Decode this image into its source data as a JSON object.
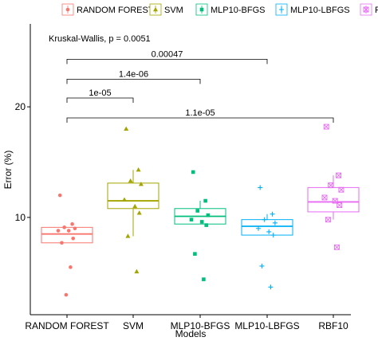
{
  "chart_data": {
    "type": "boxplot",
    "title": "",
    "xlabel": "Models",
    "ylabel": "Error (%)",
    "ylim": [
      1.2,
      27.5
    ],
    "yticks": [
      10,
      20
    ],
    "grid": false,
    "legend_position": "top",
    "categories": [
      "RANDOM FOREST",
      "SVM",
      "MLP10-BFGS",
      "MLP10-LBFGS",
      "RBF10"
    ],
    "series": [
      {
        "name": "RANDOM FOREST",
        "color": "#F8766D",
        "marker": "circle",
        "box": {
          "q1": 7.7,
          "median": 8.5,
          "q3": 9.1,
          "whisker_low": 7.7,
          "whisker_high": 9.1
        },
        "points": [
          12.0,
          9.4,
          9.1,
          9.0,
          8.8,
          8.8,
          8.1,
          7.7,
          5.5,
          3.0
        ]
      },
      {
        "name": "SVM",
        "color": "#A3A500",
        "marker": "triangle",
        "box": {
          "q1": 10.8,
          "median": 11.5,
          "q3": 13.1,
          "whisker_low": 8.3,
          "whisker_high": 14.3
        },
        "points": [
          18.0,
          14.3,
          13.3,
          13.0,
          11.6,
          11.0,
          10.4,
          8.3,
          5.1
        ]
      },
      {
        "name": "MLP10-BFGS",
        "color": "#00BF7D",
        "marker": "square",
        "box": {
          "q1": 9.4,
          "median": 10.1,
          "q3": 10.8,
          "whisker_low": 9.4,
          "whisker_high": 11.5
        },
        "points": [
          14.1,
          11.5,
          10.6,
          10.2,
          9.8,
          9.6,
          9.3,
          6.7,
          4.4
        ]
      },
      {
        "name": "MLP10-LBFGS",
        "color": "#00B0F6",
        "marker": "plus",
        "box": {
          "q1": 8.4,
          "median": 9.2,
          "q3": 9.8,
          "whisker_low": 8.4,
          "whisker_high": 10.3
        },
        "points": [
          12.7,
          10.3,
          9.8,
          9.5,
          9.0,
          8.7,
          8.4,
          5.6,
          3.7
        ]
      },
      {
        "name": "RBF10",
        "color": "#E76BF3",
        "marker": "boxed-x",
        "box": {
          "q1": 10.5,
          "median": 11.4,
          "q3": 12.7,
          "whisker_low": 9.8,
          "whisker_high": 13.8
        },
        "points": [
          18.2,
          13.8,
          12.9,
          12.5,
          11.8,
          11.5,
          11.1,
          9.8,
          7.3
        ]
      }
    ],
    "annotations": {
      "global_test": "Kruskal-Wallis, p = 0.0051",
      "comparisons": [
        {
          "group1": "RANDOM FOREST",
          "group2": "MLP10-LBFGS",
          "label": "0.00047",
          "y": 24.3
        },
        {
          "group1": "RANDOM FOREST",
          "group2": "MLP10-BFGS",
          "label": "1.4e-06",
          "y": 22.5
        },
        {
          "group1": "RANDOM FOREST",
          "group2": "SVM",
          "label": "1e-05",
          "y": 20.8
        },
        {
          "group1": "RANDOM FOREST",
          "group2": "RBF10",
          "label": "1.1e-05",
          "y": 19.0
        }
      ]
    }
  }
}
